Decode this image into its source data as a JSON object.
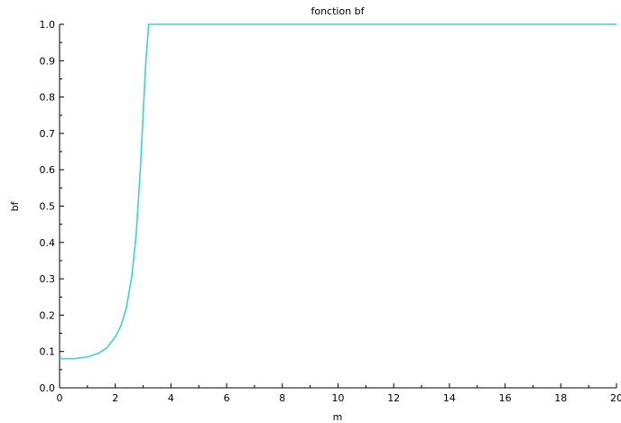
{
  "chart_data": {
    "type": "line",
    "title": "fonction bf",
    "xlabel": "m",
    "ylabel": "bf",
    "xlim": [
      0,
      20
    ],
    "ylim": [
      0,
      1
    ],
    "x_ticks": [
      0,
      2,
      4,
      6,
      8,
      10,
      12,
      14,
      16,
      18,
      20
    ],
    "x_tick_labels": [
      "0",
      "2",
      "4",
      "6",
      "8",
      "10",
      "12",
      "14",
      "16",
      "18",
      "20"
    ],
    "y_ticks": [
      0,
      0.1,
      0.2,
      0.3,
      0.4,
      0.5,
      0.6,
      0.7,
      0.8,
      0.9,
      1.0
    ],
    "y_tick_labels": [
      "0.0",
      "0.1",
      "0.2",
      "0.3",
      "0.4",
      "0.5",
      "0.6",
      "0.7",
      "0.8",
      "0.9",
      "1.0"
    ],
    "grid": false,
    "series": [
      {
        "color": "#33d6d6",
        "x": [
          0,
          0.5,
          1.0,
          1.4,
          1.7,
          2.0,
          2.2,
          2.4,
          2.6,
          2.75,
          2.9,
          3.0,
          3.1,
          3.2,
          3.3,
          3.5,
          5,
          10,
          15,
          20
        ],
        "y": [
          0.08,
          0.08,
          0.085,
          0.095,
          0.11,
          0.14,
          0.17,
          0.22,
          0.31,
          0.42,
          0.6,
          0.75,
          0.9,
          1.0,
          1.0,
          1.0,
          1.0,
          1.0,
          1.0,
          1.0
        ]
      }
    ]
  }
}
